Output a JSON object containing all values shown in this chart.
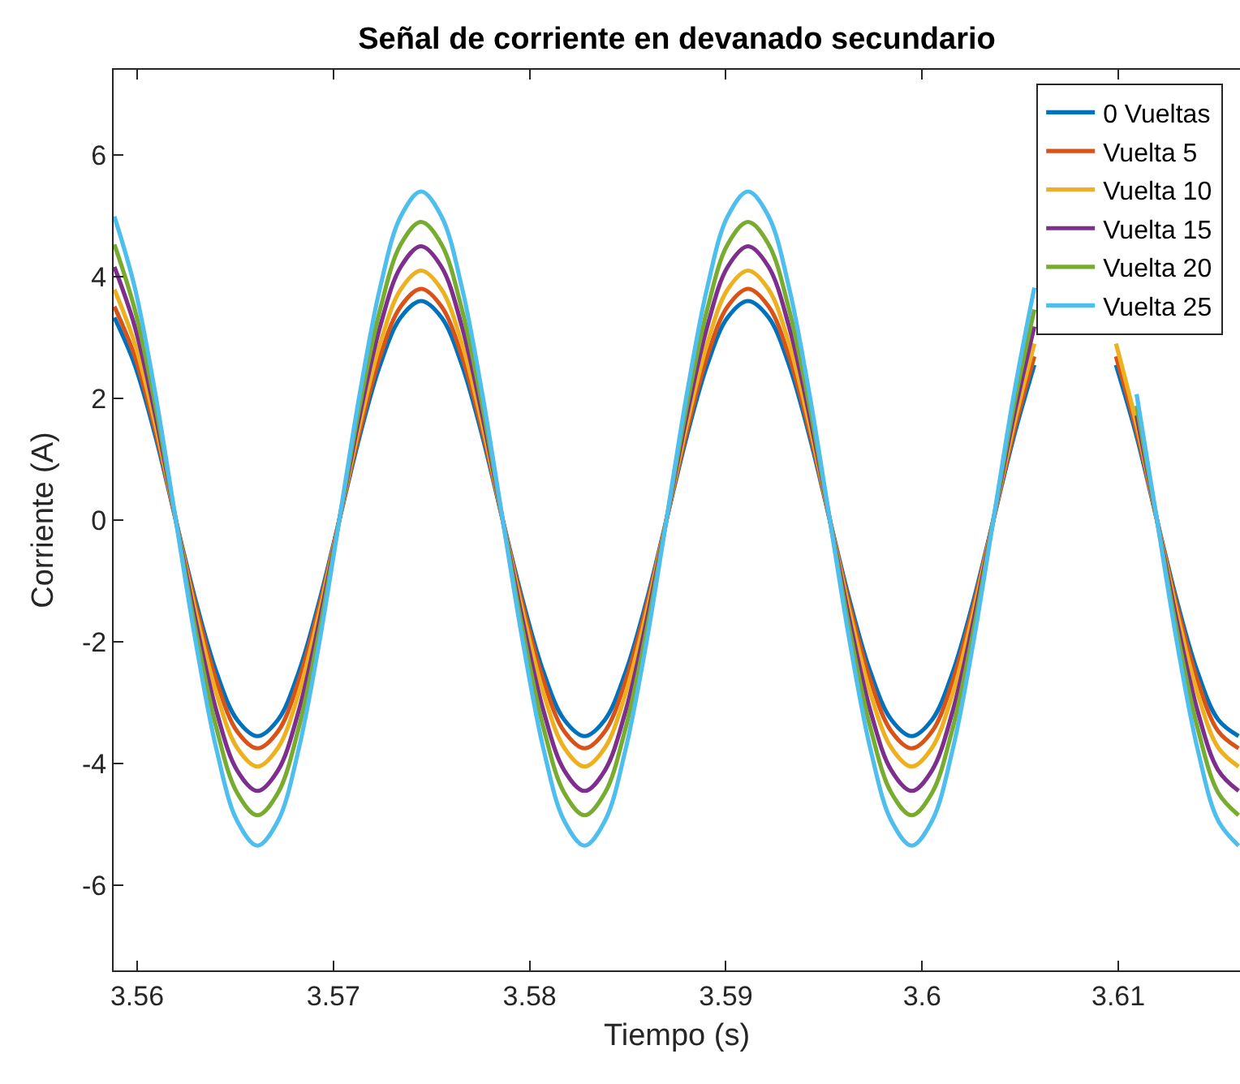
{
  "chart_data": {
    "type": "line",
    "title": "Señal de corriente en devanado secundario",
    "xlabel": "Tiempo (s)",
    "ylabel": "Corriente (A)",
    "x": [
      3.55884,
      3.55988,
      3.56093,
      3.56197,
      3.56301,
      3.56405,
      3.56509,
      3.56613,
      3.56718,
      3.56822,
      3.56926,
      3.5703,
      3.57134,
      3.57238,
      3.57343,
      3.57447,
      3.57551,
      3.57655,
      3.57759,
      3.57863,
      3.57968,
      3.58072,
      3.58176,
      3.5828,
      3.58384,
      3.58488,
      3.58593,
      3.58697,
      3.58801,
      3.58905,
      3.59009,
      3.59113,
      3.59218,
      3.59322,
      3.59426,
      3.5953,
      3.59634,
      3.59738,
      3.59843,
      3.59947,
      3.60051,
      3.60155,
      3.60259,
      3.60363,
      3.60468,
      3.60572,
      3.60676,
      3.6078,
      3.60884,
      3.60988,
      3.61093,
      3.61197,
      3.61301,
      3.61405,
      3.61509,
      3.61613
    ],
    "series": [
      {
        "name": "0 Vueltas",
        "color": "#0072bd",
        "values": [
          3.33,
          2.55,
          1.38,
          0,
          -1.36,
          -2.51,
          -3.28,
          -3.55,
          -3.28,
          -2.51,
          -1.36,
          0,
          1.38,
          2.55,
          3.33,
          3.6,
          3.33,
          2.55,
          1.38,
          0,
          -1.36,
          -2.51,
          -3.28,
          -3.55,
          -3.28,
          -2.51,
          -1.36,
          0,
          1.38,
          2.55,
          3.33,
          3.6,
          3.33,
          2.55,
          1.38,
          0,
          -1.36,
          -2.51,
          -3.28,
          -3.55,
          -3.28,
          -2.51,
          -1.36,
          0,
          1.38,
          2.55,
          null,
          null,
          null,
          2.55,
          1.38,
          0,
          -1.36,
          -2.51,
          -3.28,
          -3.55
        ]
      },
      {
        "name": "Vuelta 5",
        "color": "#d95319",
        "values": [
          3.51,
          2.69,
          1.46,
          0,
          -1.44,
          -2.65,
          -3.47,
          -3.75,
          -3.47,
          -2.65,
          -1.44,
          0,
          1.46,
          2.69,
          3.51,
          3.8,
          3.51,
          2.69,
          1.46,
          0,
          -1.44,
          -2.65,
          -3.47,
          -3.75,
          -3.47,
          -2.65,
          -1.44,
          0,
          1.46,
          2.69,
          3.51,
          3.8,
          3.51,
          2.69,
          1.46,
          0,
          -1.44,
          -2.65,
          -3.47,
          -3.75,
          -3.47,
          -2.65,
          -1.44,
          0,
          1.46,
          2.69,
          null,
          null,
          null,
          2.69,
          1.46,
          0,
          -1.44,
          -2.65,
          -3.47,
          -3.75
        ]
      },
      {
        "name": "Vuelta 10",
        "color": "#edb120",
        "values": [
          3.79,
          2.9,
          1.57,
          0,
          -1.55,
          -2.86,
          -3.74,
          -4.05,
          -3.74,
          -2.86,
          -1.55,
          0,
          1.57,
          2.9,
          3.79,
          4.1,
          3.79,
          2.9,
          1.57,
          0,
          -1.55,
          -2.86,
          -3.74,
          -4.05,
          -3.74,
          -2.86,
          -1.55,
          0,
          1.57,
          2.9,
          3.79,
          4.1,
          3.79,
          2.9,
          1.57,
          0,
          -1.55,
          -2.86,
          -3.74,
          -4.05,
          -3.74,
          -2.86,
          -1.55,
          0,
          1.57,
          2.9,
          null,
          null,
          null,
          2.9,
          1.57,
          0,
          -1.55,
          -2.86,
          -3.74,
          -4.05
        ]
      },
      {
        "name": "Vuelta 15",
        "color": "#7e2f8e",
        "values": [
          4.16,
          3.18,
          1.72,
          0,
          -1.7,
          -3.15,
          -4.11,
          -4.45,
          -4.11,
          -3.15,
          -1.7,
          0,
          1.72,
          3.18,
          4.16,
          4.5,
          4.16,
          3.18,
          1.72,
          0,
          -1.7,
          -3.15,
          -4.11,
          -4.45,
          -4.11,
          -3.15,
          -1.7,
          0,
          1.72,
          3.18,
          4.16,
          4.5,
          4.16,
          3.18,
          1.72,
          0,
          -1.7,
          -3.15,
          -4.11,
          -4.45,
          -4.11,
          -3.15,
          -1.7,
          0,
          1.72,
          3.18,
          null,
          null,
          null,
          null,
          1.72,
          0,
          -1.7,
          -3.15,
          -4.11,
          -4.45
        ]
      },
      {
        "name": "Vuelta 20",
        "color": "#77ac30",
        "values": [
          4.53,
          3.46,
          1.88,
          0,
          -1.86,
          -3.43,
          -4.48,
          -4.85,
          -4.48,
          -3.43,
          -1.86,
          0,
          1.88,
          3.46,
          4.53,
          4.9,
          4.53,
          3.46,
          1.88,
          0,
          -1.86,
          -3.43,
          -4.48,
          -4.85,
          -4.48,
          -3.43,
          -1.86,
          0,
          1.88,
          3.46,
          4.53,
          4.9,
          4.53,
          3.46,
          1.88,
          0,
          -1.86,
          -3.43,
          -4.48,
          -4.85,
          -4.48,
          -3.43,
          -1.86,
          0,
          1.88,
          3.46,
          null,
          null,
          null,
          null,
          1.88,
          0,
          -1.86,
          -3.43,
          -4.48,
          -4.85
        ]
      },
      {
        "name": "Vuelta 25",
        "color": "#4dbeee",
        "values": [
          4.99,
          3.82,
          2.07,
          0,
          -2.05,
          -3.78,
          -4.94,
          -5.35,
          -4.94,
          -3.78,
          -2.05,
          0,
          2.07,
          3.82,
          4.99,
          5.4,
          4.99,
          3.82,
          2.07,
          0,
          -2.05,
          -3.78,
          -4.94,
          -5.35,
          -4.94,
          -3.78,
          -2.05,
          0,
          2.07,
          3.82,
          4.99,
          5.4,
          4.99,
          3.82,
          2.07,
          0,
          -2.05,
          -3.78,
          -4.94,
          -5.35,
          -4.94,
          -3.78,
          -2.05,
          0,
          2.07,
          3.82,
          null,
          null,
          null,
          null,
          2.07,
          0,
          -2.05,
          -3.78,
          -4.94,
          -5.35
        ]
      }
    ],
    "xlim": [
      3.5588,
      3.6162
    ],
    "xticks": [
      3.56,
      3.57,
      3.58,
      3.59,
      {
        "value": 3.6,
        "label": "3.6"
      },
      3.61
    ],
    "ylim": [
      -7.4,
      7.4
    ],
    "yticks": [
      -6,
      -4,
      -2,
      0,
      2,
      4,
      6
    ],
    "grid": false,
    "legend": "top right",
    "marker": "none",
    "line_style": "solid"
  }
}
